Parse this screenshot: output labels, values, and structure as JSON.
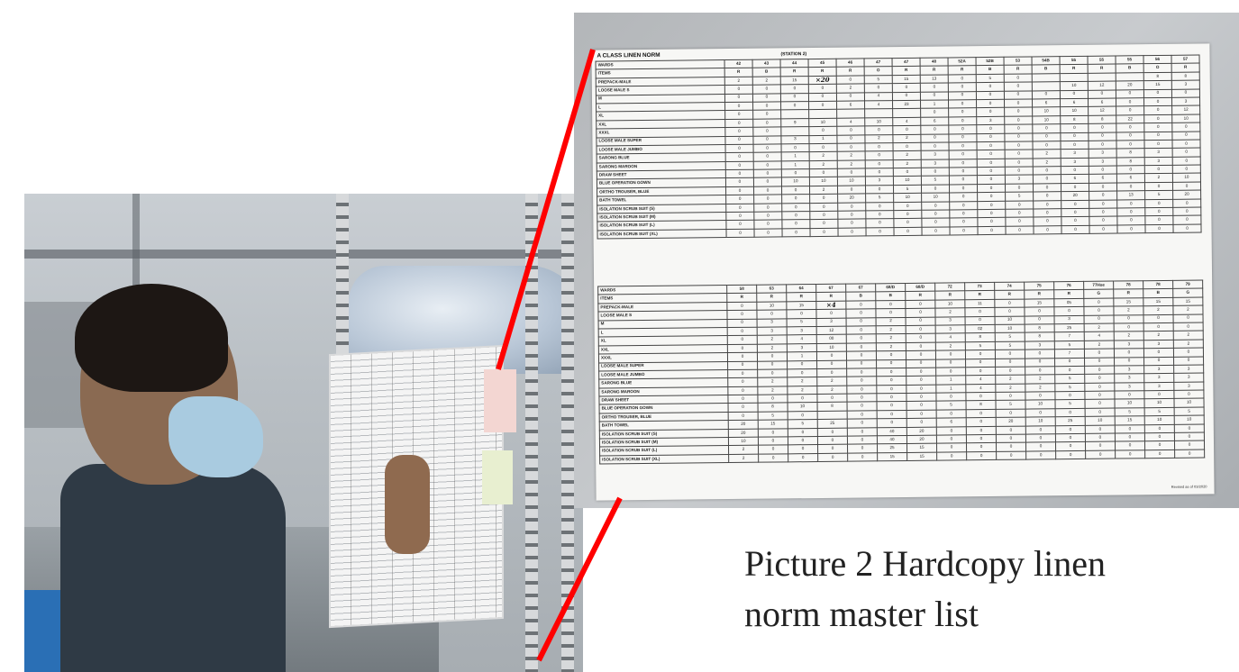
{
  "caption": {
    "line1": "Picture 2 Hardcopy linen",
    "line2": "norm master list"
  },
  "sheet": {
    "title": "A CLASS LINEN NORM",
    "station": "(STATION 2)",
    "revised": "Revised as of 03/2020",
    "table1": {
      "wards_label": "WARDS",
      "items_label": "ITEMS",
      "wards": [
        "42",
        "43",
        "44",
        "45",
        "46",
        "47",
        "47",
        "48",
        "52A",
        "52B",
        "53",
        "54B",
        "55",
        "55",
        "55",
        "56",
        "57"
      ],
      "classes": [
        "R",
        "B",
        "R",
        "R",
        "R",
        "O",
        "R",
        "R",
        "R",
        "B",
        "R",
        "B",
        "R",
        "R",
        "B",
        "O",
        "R"
      ],
      "rows": [
        {
          "item": "PREPACK-MALE",
          "cells": [
            "2",
            "2",
            "15",
            "×20",
            "0",
            "5",
            "15",
            "13",
            "0",
            "5",
            "0",
            "",
            "",
            "",
            "",
            "8",
            "8"
          ]
        },
        {
          "item": "LOOSE  MALE          S",
          "cells": [
            "0",
            "0",
            "0",
            "0",
            "2",
            "0",
            "0",
            "0",
            "0",
            "0",
            "0",
            "",
            "10",
            "12",
            "20",
            "15",
            "3"
          ]
        },
        {
          "item": "M",
          "cells": [
            "0",
            "0",
            "0",
            "0",
            "0",
            "4",
            "0",
            "0",
            "0",
            "0",
            "0",
            "0",
            "0",
            "0",
            "0",
            "0",
            "0"
          ]
        },
        {
          "item": "L",
          "cells": [
            "0",
            "0",
            "0",
            "0",
            "6",
            "4",
            "23",
            "1",
            "0",
            "0",
            "0",
            "6",
            "6",
            "6",
            "0",
            "0",
            "3"
          ]
        },
        {
          "item": "XL",
          "cells": [
            "0",
            "0",
            "",
            "",
            "",
            "",
            "",
            "0",
            "0",
            "0",
            "0",
            "10",
            "10",
            "12",
            "0",
            "0",
            "12"
          ]
        },
        {
          "item": "XXL",
          "cells": [
            "0",
            "0",
            "9",
            "10",
            "4",
            "10",
            "4",
            "6",
            "0",
            "3",
            "0",
            "10",
            "8",
            "8",
            "22",
            "0",
            "10"
          ]
        },
        {
          "item": "XXXL",
          "cells": [
            "0",
            "0",
            "",
            "0",
            "0",
            "0",
            "0",
            "0",
            "0",
            "0",
            "0",
            "0",
            "0",
            "0",
            "0",
            "0",
            "0"
          ]
        },
        {
          "item": "LOOSE MALE       SUPER",
          "cells": [
            "0",
            "0",
            "3",
            "1",
            "0",
            "2",
            "2",
            "0",
            "0",
            "0",
            "0",
            "0",
            "0",
            "0",
            "0",
            "0",
            "0"
          ]
        },
        {
          "item": "LOOSE MALE       JUMBO",
          "cells": [
            "0",
            "0",
            "0",
            "0",
            "0",
            "0",
            "0",
            "0",
            "0",
            "0",
            "0",
            "0",
            "0",
            "0",
            "0",
            "0",
            "0"
          ]
        },
        {
          "item": "SARONG BLUE",
          "cells": [
            "0",
            "0",
            "1",
            "2",
            "2",
            "0",
            "2",
            "3",
            "0",
            "0",
            "0",
            "2",
            "3",
            "3",
            "8",
            "3",
            "0"
          ]
        },
        {
          "item": "SARONG MAROON",
          "cells": [
            "0",
            "0",
            "1",
            "2",
            "2",
            "0",
            "2",
            "3",
            "0",
            "0",
            "0",
            "2",
            "3",
            "3",
            "8",
            "3",
            "0"
          ]
        },
        {
          "item": "DRAW SHEET",
          "cells": [
            "0",
            "0",
            "0",
            "0",
            "0",
            "0",
            "0",
            "0",
            "0",
            "0",
            "0",
            "0",
            "0",
            "0",
            "0",
            "0",
            "0"
          ]
        },
        {
          "item": "BLUE OPERATION GOWN",
          "cells": [
            "0",
            "0",
            "10",
            "10",
            "10",
            "3",
            "10",
            "5",
            "0",
            "0",
            "3",
            "0",
            "6",
            "6",
            "6",
            "2",
            "10"
          ]
        },
        {
          "item": "ORTHO TROUSER, BLUE",
          "cells": [
            "0",
            "0",
            "0",
            "2",
            "0",
            "0",
            "5",
            "0",
            "0",
            "0",
            "0",
            "0",
            "0",
            "0",
            "0",
            "0",
            "0"
          ]
        },
        {
          "item": "BATH TOWEL",
          "cells": [
            "0",
            "0",
            "0",
            "0",
            "20",
            "5",
            "10",
            "10",
            "0",
            "0",
            "5",
            "0",
            "20",
            "0",
            "13",
            "5",
            "20"
          ]
        },
        {
          "item": "ISOLATION SCRUB SUIT (S)",
          "cells": [
            "0",
            "0",
            "0",
            "0",
            "0",
            "0",
            "0",
            "0",
            "0",
            "0",
            "0",
            "0",
            "0",
            "0",
            "0",
            "0",
            "0"
          ]
        },
        {
          "item": "ISOLATION SCRUB SUIT (M)",
          "cells": [
            "0",
            "0",
            "0",
            "0",
            "0",
            "0",
            "0",
            "0",
            "0",
            "0",
            "0",
            "0",
            "0",
            "0",
            "0",
            "0",
            "0"
          ]
        },
        {
          "item": "ISOLATION SCRUB SUIT (L)",
          "cells": [
            "0",
            "0",
            "0",
            "0",
            "0",
            "0",
            "0",
            "0",
            "0",
            "0",
            "0",
            "0",
            "0",
            "0",
            "0",
            "0",
            "0"
          ]
        },
        {
          "item": "ISOLATION SCRUB SUIT (XL)",
          "cells": [
            "0",
            "0",
            "0",
            "0",
            "0",
            "0",
            "0",
            "0",
            "0",
            "0",
            "0",
            "0",
            "0",
            "0",
            "0",
            "0",
            "0"
          ]
        }
      ]
    },
    "table2": {
      "wards_label": "WARDS",
      "items_label": "ITEMS",
      "wards": [
        "58",
        "63",
        "64",
        "67",
        "67",
        "68/D",
        "68/D",
        "72",
        "73",
        "74",
        "75",
        "76",
        "77Hse",
        "78",
        "78",
        "79"
      ],
      "classes": [
        "R",
        "R",
        "R",
        "R",
        "B",
        "B",
        "R",
        "R",
        "R",
        "R",
        "R",
        "R",
        "G",
        "R",
        "B",
        "G"
      ],
      "rows": [
        {
          "item": "PREPACK-MALE",
          "cells": [
            "0",
            "10",
            "15",
            "×4",
            "0",
            "0",
            "0",
            "10",
            "11",
            "0",
            "15",
            "05",
            "0",
            "15",
            "15",
            "15"
          ]
        },
        {
          "item": "LOOSE  MALE          S",
          "cells": [
            "0",
            "0",
            "0",
            "0",
            "0",
            "0",
            "0",
            "2",
            "0",
            "0",
            "0",
            "0",
            "0",
            "2",
            "2",
            "2"
          ]
        },
        {
          "item": "M",
          "cells": [
            "0",
            "3",
            "5",
            "3",
            "0",
            "2",
            "0",
            "3",
            "0",
            "10",
            "0",
            "3",
            "0",
            "0",
            "0",
            "0"
          ]
        },
        {
          "item": "L",
          "cells": [
            "0",
            "3",
            "3",
            "12",
            "0",
            "2",
            "0",
            "3",
            "02",
            "10",
            "8",
            "25",
            "2",
            "0",
            "0",
            "0"
          ]
        },
        {
          "item": "XL",
          "cells": [
            "0",
            "2",
            "4",
            "00",
            "0",
            "2",
            "0",
            "4",
            "8",
            "5",
            "8",
            "7",
            "4",
            "2",
            "2",
            "2"
          ]
        },
        {
          "item": "XXL",
          "cells": [
            "0",
            "2",
            "3",
            "10",
            "0",
            "2",
            "0",
            "2",
            "5",
            "5",
            "3",
            "5",
            "2",
            "3",
            "3",
            "2"
          ]
        },
        {
          "item": "XXXL",
          "cells": [
            "0",
            "0",
            "1",
            "0",
            "0",
            "0",
            "0",
            "0",
            "0",
            "0",
            "0",
            "7",
            "0",
            "0",
            "0",
            "0"
          ]
        },
        {
          "item": "LOOSE MALE       SUPER",
          "cells": [
            "0",
            "0",
            "0",
            "0",
            "0",
            "0",
            "0",
            "0",
            "0",
            "0",
            "0",
            "0",
            "0",
            "0",
            "0",
            "0"
          ]
        },
        {
          "item": "LOOSE MALE       JUMBO",
          "cells": [
            "0",
            "0",
            "0",
            "0",
            "0",
            "0",
            "0",
            "0",
            "0",
            "0",
            "0",
            "0",
            "0",
            "3",
            "3",
            "3"
          ]
        },
        {
          "item": "SARONG BLUE",
          "cells": [
            "0",
            "2",
            "2",
            "2",
            "0",
            "0",
            "0",
            "1",
            "4",
            "2",
            "2",
            "5",
            "0",
            "3",
            "3",
            "3"
          ]
        },
        {
          "item": "SARONG MAROON",
          "cells": [
            "0",
            "2",
            "2",
            "2",
            "0",
            "0",
            "0",
            "1",
            "4",
            "2",
            "2",
            "5",
            "0",
            "3",
            "3",
            "3"
          ]
        },
        {
          "item": "DRAW SHEET",
          "cells": [
            "0",
            "0",
            "0",
            "0",
            "0",
            "0",
            "0",
            "0",
            "0",
            "0",
            "0",
            "0",
            "0",
            "0",
            "0",
            "0"
          ]
        },
        {
          "item": "BLUE OPERATION GOWN",
          "cells": [
            "0",
            "8",
            "10",
            "8",
            "0",
            "0",
            "0",
            "5",
            "8",
            "5",
            "10",
            "5",
            "0",
            "10",
            "10",
            "10"
          ]
        },
        {
          "item": "ORTHO TROUSER, BLUE",
          "cells": [
            "0",
            "5",
            "0",
            "",
            "0",
            "0",
            "0",
            "0",
            "0",
            "0",
            "0",
            "0",
            "0",
            "5",
            "5",
            "5"
          ]
        },
        {
          "item": "BATH TOWEL",
          "cells": [
            "20",
            "15",
            "5",
            "25",
            "0",
            "0",
            "0",
            "6",
            "0",
            "20",
            "10",
            "25",
            "10",
            "15",
            "10",
            "10"
          ]
        },
        {
          "item": "ISOLATION SCRUB SUIT (S)",
          "cells": [
            "20",
            "0",
            "0",
            "0",
            "0",
            "40",
            "20",
            "0",
            "0",
            "0",
            "0",
            "0",
            "0",
            "0",
            "0",
            "0"
          ]
        },
        {
          "item": "ISOLATION SCRUB SUIT (M)",
          "cells": [
            "10",
            "0",
            "0",
            "0",
            "0",
            "40",
            "20",
            "0",
            "0",
            "0",
            "0",
            "0",
            "0",
            "0",
            "0",
            "0"
          ]
        },
        {
          "item": "ISOLATION SCRUB SUIT (L)",
          "cells": [
            "2",
            "0",
            "0",
            "0",
            "0",
            "25",
            "15",
            "0",
            "0",
            "0",
            "0",
            "0",
            "0",
            "0",
            "0",
            "0"
          ]
        },
        {
          "item": "ISOLATION SCRUB SUIT (XL)",
          "cells": [
            "2",
            "0",
            "0",
            "0",
            "0",
            "15",
            "15",
            "0",
            "0",
            "0",
            "0",
            "0",
            "0",
            "0",
            "0",
            "0"
          ]
        }
      ]
    }
  },
  "colors": {
    "connector": "#ff0000",
    "caption_text": "#222222"
  }
}
